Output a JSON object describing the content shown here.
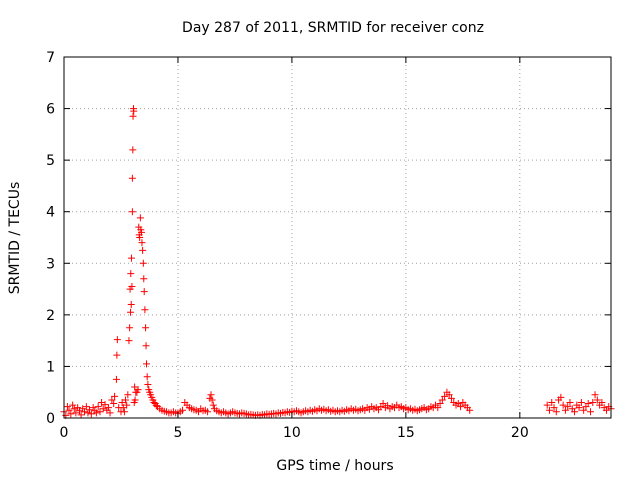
{
  "chart_data": {
    "type": "scatter",
    "title": "Day 287 of 2011, SRMTID for receiver conz",
    "xlabel": "GPS time / hours",
    "ylabel": "SRMTID / TECUs",
    "xlim": [
      0,
      24
    ],
    "ylim": [
      0,
      7
    ],
    "xticks": [
      0,
      5,
      10,
      15,
      20
    ],
    "yticks": [
      0,
      1,
      2,
      3,
      4,
      5,
      6,
      7
    ],
    "grid": true,
    "marker": "plus",
    "color": "#ff0000",
    "series": [
      {
        "points": [
          [
            0.0,
            0.12
          ],
          [
            0.08,
            0.05
          ],
          [
            0.15,
            0.22
          ],
          [
            0.22,
            0.15
          ],
          [
            0.3,
            0.08
          ],
          [
            0.38,
            0.25
          ],
          [
            0.45,
            0.18
          ],
          [
            0.52,
            0.1
          ],
          [
            0.6,
            0.2
          ],
          [
            0.68,
            0.14
          ],
          [
            0.75,
            0.06
          ],
          [
            0.82,
            0.18
          ],
          [
            0.9,
            0.12
          ],
          [
            0.98,
            0.22
          ],
          [
            1.05,
            0.1
          ],
          [
            1.12,
            0.16
          ],
          [
            1.2,
            0.08
          ],
          [
            1.28,
            0.2
          ],
          [
            1.35,
            0.14
          ],
          [
            1.42,
            0.1
          ],
          [
            1.5,
            0.22
          ],
          [
            1.58,
            0.12
          ],
          [
            1.65,
            0.3
          ],
          [
            1.72,
            0.18
          ],
          [
            1.8,
            0.26
          ],
          [
            1.88,
            0.15
          ],
          [
            1.95,
            0.2
          ],
          [
            2.02,
            0.1
          ],
          [
            2.1,
            0.35
          ],
          [
            2.18,
            0.28
          ],
          [
            2.22,
            0.42
          ],
          [
            2.3,
            0.75
          ],
          [
            2.32,
            1.22
          ],
          [
            2.34,
            1.52
          ],
          [
            2.4,
            0.2
          ],
          [
            2.5,
            0.12
          ],
          [
            2.55,
            0.3
          ],
          [
            2.6,
            0.2
          ],
          [
            2.65,
            0.12
          ],
          [
            2.7,
            0.35
          ],
          [
            2.75,
            0.25
          ],
          [
            2.8,
            0.45
          ],
          [
            2.85,
            1.5
          ],
          [
            2.88,
            1.75
          ],
          [
            2.9,
            2.5
          ],
          [
            2.92,
            2.05
          ],
          [
            2.93,
            2.8
          ],
          [
            2.95,
            2.2
          ],
          [
            2.96,
            3.1
          ],
          [
            2.98,
            2.55
          ],
          [
            3.0,
            4.0
          ],
          [
            3.0,
            4.65
          ],
          [
            3.02,
            5.2
          ],
          [
            3.03,
            5.85
          ],
          [
            3.05,
            6.0
          ],
          [
            3.06,
            5.95
          ],
          [
            3.08,
            0.3
          ],
          [
            3.1,
            0.6
          ],
          [
            3.12,
            0.35
          ],
          [
            3.15,
            0.5
          ],
          [
            3.2,
            0.5
          ],
          [
            3.25,
            0.55
          ],
          [
            3.28,
            3.7
          ],
          [
            3.3,
            3.55
          ],
          [
            3.32,
            3.5
          ],
          [
            3.35,
            3.88
          ],
          [
            3.37,
            3.65
          ],
          [
            3.4,
            3.6
          ],
          [
            3.42,
            3.4
          ],
          [
            3.45,
            3.25
          ],
          [
            3.48,
            3.0
          ],
          [
            3.5,
            2.7
          ],
          [
            3.52,
            2.45
          ],
          [
            3.55,
            2.1
          ],
          [
            3.58,
            1.75
          ],
          [
            3.6,
            1.4
          ],
          [
            3.62,
            1.05
          ],
          [
            3.65,
            0.8
          ],
          [
            3.68,
            0.65
          ],
          [
            3.72,
            0.55
          ],
          [
            3.76,
            0.5
          ],
          [
            3.8,
            0.45
          ],
          [
            3.85,
            0.4
          ],
          [
            3.9,
            0.35
          ],
          [
            3.95,
            0.3
          ],
          [
            4.0,
            0.28
          ],
          [
            4.05,
            0.24
          ],
          [
            4.1,
            0.22
          ],
          [
            4.2,
            0.18
          ],
          [
            4.3,
            0.15
          ],
          [
            4.4,
            0.13
          ],
          [
            4.5,
            0.12
          ],
          [
            4.6,
            0.1
          ],
          [
            4.7,
            0.1
          ],
          [
            4.8,
            0.12
          ],
          [
            4.9,
            0.1
          ],
          [
            5.0,
            0.09
          ],
          [
            5.1,
            0.12
          ],
          [
            5.2,
            0.15
          ],
          [
            5.3,
            0.3
          ],
          [
            5.4,
            0.25
          ],
          [
            5.5,
            0.2
          ],
          [
            5.6,
            0.18
          ],
          [
            5.7,
            0.16
          ],
          [
            5.8,
            0.15
          ],
          [
            5.9,
            0.12
          ],
          [
            6.0,
            0.18
          ],
          [
            6.1,
            0.14
          ],
          [
            6.2,
            0.15
          ],
          [
            6.3,
            0.12
          ],
          [
            6.4,
            0.38
          ],
          [
            6.45,
            0.45
          ],
          [
            6.5,
            0.35
          ],
          [
            6.55,
            0.25
          ],
          [
            6.6,
            0.18
          ],
          [
            6.7,
            0.14
          ],
          [
            6.8,
            0.12
          ],
          [
            6.9,
            0.1
          ],
          [
            7.0,
            0.12
          ],
          [
            7.1,
            0.1
          ],
          [
            7.2,
            0.08
          ],
          [
            7.3,
            0.1
          ],
          [
            7.4,
            0.12
          ],
          [
            7.5,
            0.1
          ],
          [
            7.6,
            0.09
          ],
          [
            7.7,
            0.08
          ],
          [
            7.8,
            0.1
          ],
          [
            7.9,
            0.09
          ],
          [
            8.0,
            0.08
          ],
          [
            8.1,
            0.06
          ],
          [
            8.2,
            0.07
          ],
          [
            8.3,
            0.06
          ],
          [
            8.4,
            0.05
          ],
          [
            8.5,
            0.06
          ],
          [
            8.6,
            0.05
          ],
          [
            8.7,
            0.07
          ],
          [
            8.8,
            0.06
          ],
          [
            8.9,
            0.08
          ],
          [
            9.0,
            0.07
          ],
          [
            9.1,
            0.08
          ],
          [
            9.2,
            0.09
          ],
          [
            9.3,
            0.08
          ],
          [
            9.4,
            0.1
          ],
          [
            9.5,
            0.09
          ],
          [
            9.6,
            0.11
          ],
          [
            9.7,
            0.1
          ],
          [
            9.8,
            0.12
          ],
          [
            9.9,
            0.11
          ],
          [
            10.0,
            0.13
          ],
          [
            10.1,
            0.12
          ],
          [
            10.2,
            0.14
          ],
          [
            10.3,
            0.12
          ],
          [
            10.4,
            0.1
          ],
          [
            10.5,
            0.12
          ],
          [
            10.6,
            0.14
          ],
          [
            10.7,
            0.12
          ],
          [
            10.8,
            0.15
          ],
          [
            10.9,
            0.13
          ],
          [
            11.0,
            0.16
          ],
          [
            11.1,
            0.14
          ],
          [
            11.2,
            0.18
          ],
          [
            11.3,
            0.15
          ],
          [
            11.4,
            0.17
          ],
          [
            11.5,
            0.14
          ],
          [
            11.6,
            0.16
          ],
          [
            11.7,
            0.13
          ],
          [
            11.8,
            0.15
          ],
          [
            11.9,
            0.12
          ],
          [
            12.0,
            0.14
          ],
          [
            12.1,
            0.12
          ],
          [
            12.2,
            0.15
          ],
          [
            12.3,
            0.13
          ],
          [
            12.4,
            0.16
          ],
          [
            12.5,
            0.14
          ],
          [
            12.6,
            0.18
          ],
          [
            12.7,
            0.15
          ],
          [
            12.8,
            0.17
          ],
          [
            12.9,
            0.14
          ],
          [
            13.0,
            0.16
          ],
          [
            13.1,
            0.18
          ],
          [
            13.2,
            0.15
          ],
          [
            13.3,
            0.2
          ],
          [
            13.4,
            0.17
          ],
          [
            13.5,
            0.22
          ],
          [
            13.6,
            0.18
          ],
          [
            13.7,
            0.2
          ],
          [
            13.8,
            0.16
          ],
          [
            13.9,
            0.22
          ],
          [
            14.0,
            0.28
          ],
          [
            14.1,
            0.2
          ],
          [
            14.2,
            0.24
          ],
          [
            14.3,
            0.18
          ],
          [
            14.4,
            0.22
          ],
          [
            14.5,
            0.2
          ],
          [
            14.6,
            0.25
          ],
          [
            14.7,
            0.2
          ],
          [
            14.8,
            0.22
          ],
          [
            14.9,
            0.18
          ],
          [
            15.0,
            0.2
          ],
          [
            15.1,
            0.16
          ],
          [
            15.2,
            0.18
          ],
          [
            15.3,
            0.15
          ],
          [
            15.4,
            0.17
          ],
          [
            15.5,
            0.14
          ],
          [
            15.6,
            0.16
          ],
          [
            15.7,
            0.18
          ],
          [
            15.8,
            0.2
          ],
          [
            15.9,
            0.16
          ],
          [
            16.0,
            0.18
          ],
          [
            16.1,
            0.22
          ],
          [
            16.2,
            0.2
          ],
          [
            16.3,
            0.25
          ],
          [
            16.4,
            0.2
          ],
          [
            16.5,
            0.28
          ],
          [
            16.6,
            0.35
          ],
          [
            16.7,
            0.42
          ],
          [
            16.8,
            0.5
          ],
          [
            16.9,
            0.45
          ],
          [
            17.0,
            0.38
          ],
          [
            17.1,
            0.3
          ],
          [
            17.2,
            0.25
          ],
          [
            17.3,
            0.28
          ],
          [
            17.4,
            0.22
          ],
          [
            17.5,
            0.3
          ],
          [
            17.6,
            0.25
          ],
          [
            17.7,
            0.2
          ],
          [
            17.8,
            0.15
          ],
          [
            21.2,
            0.25
          ],
          [
            21.3,
            0.15
          ],
          [
            21.4,
            0.3
          ],
          [
            21.5,
            0.2
          ],
          [
            21.6,
            0.12
          ],
          [
            21.7,
            0.35
          ],
          [
            21.8,
            0.4
          ],
          [
            21.9,
            0.25
          ],
          [
            22.0,
            0.15
          ],
          [
            22.1,
            0.22
          ],
          [
            22.2,
            0.3
          ],
          [
            22.3,
            0.18
          ],
          [
            22.4,
            0.12
          ],
          [
            22.5,
            0.25
          ],
          [
            22.6,
            0.2
          ],
          [
            22.7,
            0.3
          ],
          [
            22.8,
            0.15
          ],
          [
            22.9,
            0.22
          ],
          [
            23.0,
            0.28
          ],
          [
            23.1,
            0.12
          ],
          [
            23.2,
            0.3
          ],
          [
            23.3,
            0.45
          ],
          [
            23.4,
            0.35
          ],
          [
            23.5,
            0.25
          ],
          [
            23.6,
            0.3
          ],
          [
            23.7,
            0.2
          ],
          [
            23.8,
            0.15
          ],
          [
            23.9,
            0.22
          ],
          [
            24.0,
            0.18
          ]
        ]
      }
    ]
  }
}
